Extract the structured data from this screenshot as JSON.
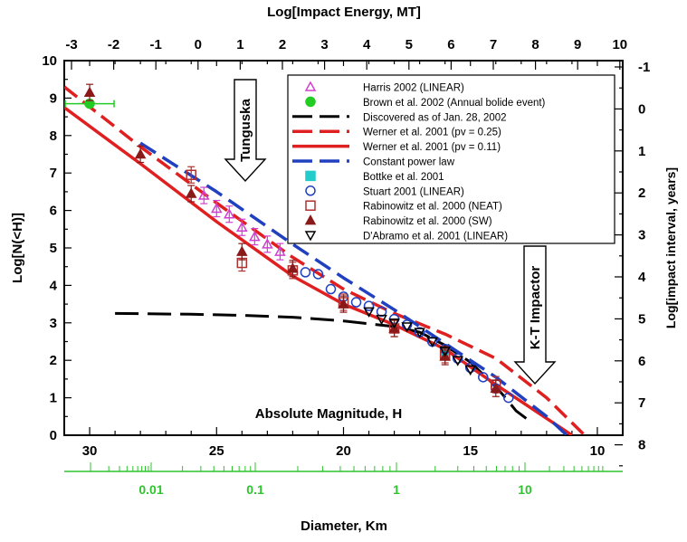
{
  "chart_data": {
    "type": "scatter",
    "title": "Log[Impact Energy, MT]",
    "xlabel": "Absolute Magnitude, H",
    "ylabel": "Log[N(<H)]",
    "ylabel_right": "Log[impact interval, years]",
    "xlabel_diameter": "Diameter, Km",
    "xlim": [
      31,
      9
    ],
    "ylim": [
      0,
      10
    ],
    "x_ticks": [
      "30",
      "25",
      "20",
      "15",
      "10"
    ],
    "y_ticks": [
      "0",
      "1",
      "2",
      "3",
      "4",
      "5",
      "6",
      "7",
      "8",
      "9",
      "10"
    ],
    "top_ticks": [
      "-3",
      "-2",
      "-1",
      "0",
      "1",
      "2",
      "3",
      "4",
      "5",
      "6",
      "7",
      "8",
      "9",
      "10"
    ],
    "right_ticks": [
      "-1",
      "0",
      "1",
      "2",
      "3",
      "4",
      "5",
      "6",
      "7",
      "8"
    ],
    "diameter_ticks": [
      "0.01",
      "0.1",
      "1",
      "10"
    ],
    "annotations": [
      {
        "text": "Tunguska",
        "x": 24.0,
        "y": 8.2
      },
      {
        "text": "K-T Impactor",
        "x": 12.8,
        "y": 2.8
      }
    ],
    "series": [
      {
        "name": "Harris 2002 (LINEAR)",
        "color": "#d040d0",
        "marker": "triangle-open",
        "x": [
          25.5,
          25.0,
          24.5,
          24.0,
          23.5,
          23.0,
          22.5
        ],
        "y": [
          6.4,
          6.05,
          5.9,
          5.55,
          5.3,
          5.1,
          4.9
        ]
      },
      {
        "name": "Brown et al. 2002 (Annual bolide event)",
        "color": "#22cc22",
        "marker": "circle",
        "x": [
          30.0
        ],
        "y": [
          8.85
        ]
      },
      {
        "name": "Discovered as of Jan. 28, 2002",
        "color": "#000000",
        "marker": "line-dash",
        "x": [
          29,
          26,
          24,
          22,
          20,
          18,
          17,
          16,
          15,
          14,
          13.5,
          13.2,
          12.8
        ],
        "y": [
          3.25,
          3.23,
          3.2,
          3.15,
          3.05,
          2.9,
          2.75,
          2.4,
          1.95,
          1.3,
          0.9,
          0.65,
          0.45
        ]
      },
      {
        "name": "Werner et al. 2001 (pv = 0.25)",
        "color": "#e02020",
        "marker": "line-dash",
        "x": [
          31,
          28,
          25,
          22,
          20,
          18,
          16,
          14,
          12,
          10.5
        ],
        "y": [
          9.3,
          7.7,
          6.2,
          4.75,
          3.9,
          3.25,
          2.7,
          2.05,
          1.0,
          0.0
        ]
      },
      {
        "name": "Werner et al. 2001 (pv = 0.11)",
        "color": "#e02020",
        "marker": "line",
        "x": [
          31,
          28,
          25,
          22,
          20,
          18,
          16,
          14,
          12,
          11
        ],
        "y": [
          8.75,
          7.25,
          5.7,
          4.25,
          3.5,
          2.95,
          2.3,
          1.35,
          0.45,
          0.0
        ]
      },
      {
        "name": "Constant power law",
        "color": "#2040c0",
        "marker": "line-dash",
        "x": [
          28,
          25,
          22,
          20,
          18,
          16,
          14,
          12,
          11.2
        ],
        "y": [
          7.8,
          6.5,
          5.1,
          4.2,
          3.35,
          2.45,
          1.55,
          0.5,
          0.0
        ]
      },
      {
        "name": "Bottke et al. 2001",
        "color": "#22cccc",
        "marker": "square",
        "x": [
          16.0
        ],
        "y": [
          2.2
        ]
      },
      {
        "name": "Stuart 2001 (LINEAR)",
        "color": "#2040c0",
        "marker": "circle-open",
        "x": [
          21.5,
          21.0,
          20.5,
          20.0,
          19.5,
          19.0,
          18.5,
          18.0,
          17.5,
          17.0,
          16.5,
          16.0,
          15.5,
          15.0,
          14.5,
          14.0,
          13.5
        ],
        "y": [
          4.35,
          4.3,
          3.9,
          3.7,
          3.55,
          3.45,
          3.3,
          3.1,
          2.95,
          2.75,
          2.5,
          2.3,
          2.05,
          1.8,
          1.55,
          1.25,
          1.0
        ]
      },
      {
        "name": "Rabinowitz et al. 2000 (NEAT)",
        "color": "#b03030",
        "marker": "square-open",
        "x": [
          26.0,
          24.0,
          22.0,
          20.0,
          18.0,
          16.0,
          14.0
        ],
        "y": [
          6.95,
          4.6,
          4.4,
          3.55,
          2.85,
          2.15,
          1.35
        ]
      },
      {
        "name": "Rabinowitz et al. 2000 (SW)",
        "color": "#8a1a1a",
        "marker": "triangle",
        "x": [
          30.0,
          28.0,
          26.0,
          24.0,
          22.0,
          20.0,
          18.0,
          16.0,
          14.0
        ],
        "y": [
          9.15,
          7.5,
          6.45,
          4.9,
          4.45,
          3.5,
          2.85,
          2.1,
          1.25
        ]
      },
      {
        "name": "D'Abramo et al. 2001 (LINEAR)",
        "color": "#000000",
        "marker": "triangle-down-open",
        "x": [
          19.0,
          18.5,
          18.0,
          17.5,
          17.0,
          16.5,
          16.0,
          15.5,
          15.0
        ],
        "y": [
          3.3,
          3.1,
          3.0,
          2.9,
          2.75,
          2.5,
          2.25,
          2.0,
          1.75
        ]
      }
    ]
  }
}
